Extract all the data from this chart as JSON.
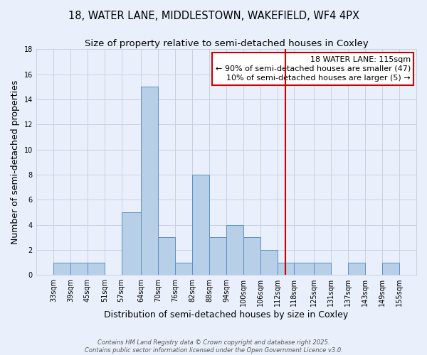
{
  "title": "18, WATER LANE, MIDDLESTOWN, WAKEFIELD, WF4 4PX",
  "subtitle": "Size of property relative to semi-detached houses in Coxley",
  "xlabel": "Distribution of semi-detached houses by size in Coxley",
  "ylabel": "Number of semi-detached properties",
  "bin_edges": [
    33,
    39,
    45,
    51,
    57,
    64,
    70,
    76,
    82,
    88,
    94,
    100,
    106,
    112,
    118,
    125,
    131,
    137,
    143,
    149,
    155
  ],
  "bin_counts": [
    1,
    1,
    1,
    0,
    5,
    15,
    3,
    1,
    8,
    3,
    4,
    3,
    2,
    1,
    1,
    1,
    0,
    1,
    0,
    1
  ],
  "bar_color": "#b8cfe8",
  "bar_edgecolor": "#5b8fc9",
  "background_color": "#eaf0fb",
  "grid_color": "#c8d0e0",
  "vline_x": 115,
  "vline_color": "#cc0000",
  "legend_title": "18 WATER LANE: 115sqm",
  "legend_line1": "← 90% of semi-detached houses are smaller (47)",
  "legend_line2": "10% of semi-detached houses are larger (5) →",
  "tick_labels": [
    "33sqm",
    "39sqm",
    "45sqm",
    "51sqm",
    "57sqm",
    "64sqm",
    "70sqm",
    "76sqm",
    "82sqm",
    "88sqm",
    "94sqm",
    "100sqm",
    "106sqm",
    "112sqm",
    "118sqm",
    "125sqm",
    "131sqm",
    "137sqm",
    "143sqm",
    "149sqm",
    "155sqm"
  ],
  "ylim": [
    0,
    18
  ],
  "yticks": [
    0,
    2,
    4,
    6,
    8,
    10,
    12,
    14,
    16,
    18
  ],
  "footer_line1": "Contains HM Land Registry data © Crown copyright and database right 2025.",
  "footer_line2": "Contains public sector information licensed under the Open Government Licence v3.0.",
  "title_fontsize": 10.5,
  "subtitle_fontsize": 9.5,
  "axis_label_fontsize": 9,
  "tick_fontsize": 7,
  "footer_fontsize": 6,
  "legend_fontsize": 8
}
